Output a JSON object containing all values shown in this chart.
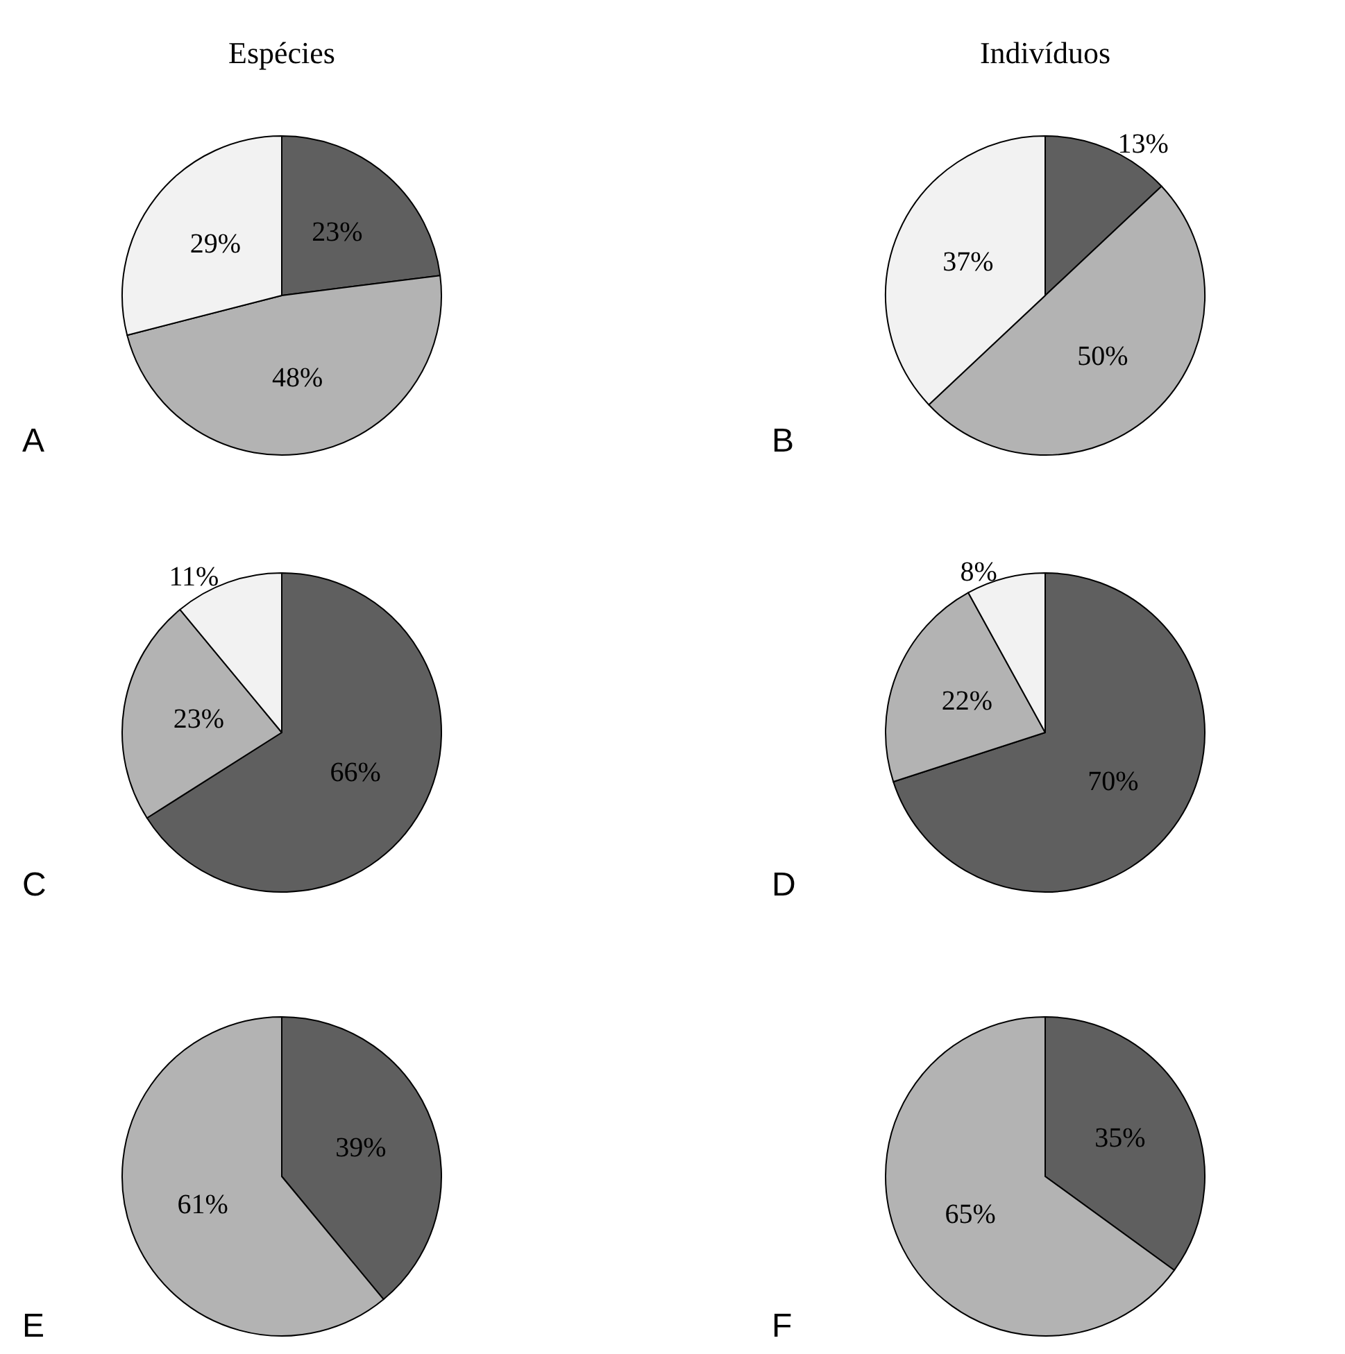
{
  "chart_data": [
    {
      "type": "pie",
      "title": "Espécies",
      "categories": [
        null,
        null,
        null
      ],
      "values": [
        23,
        48,
        29
      ],
      "colors": [
        "#5f5f5f",
        "#b3b3b3",
        "#f2f2f2"
      ],
      "value_labels": [
        "23%",
        "48%",
        "29%"
      ],
      "annotations": [
        "A"
      ]
    },
    {
      "type": "pie",
      "title": "Indivíduos",
      "categories": [
        null,
        null,
        null
      ],
      "values": [
        13,
        50,
        37
      ],
      "colors": [
        "#5f5f5f",
        "#b3b3b3",
        "#f2f2f2"
      ],
      "value_labels": [
        "13%",
        "50%",
        "37%"
      ],
      "annotations": [
        "B"
      ]
    },
    {
      "type": "pie",
      "categories": [
        null,
        null,
        null
      ],
      "values": [
        66,
        23,
        11
      ],
      "colors": [
        "#5f5f5f",
        "#b3b3b3",
        "#f2f2f2"
      ],
      "value_labels": [
        "66%",
        "23%",
        "11%"
      ],
      "annotations": [
        "C"
      ]
    },
    {
      "type": "pie",
      "categories": [
        null,
        null,
        null
      ],
      "values": [
        70,
        22,
        8
      ],
      "colors": [
        "#5f5f5f",
        "#b3b3b3",
        "#f2f2f2"
      ],
      "value_labels": [
        "70%",
        "22%",
        "8%"
      ],
      "annotations": [
        "D"
      ]
    },
    {
      "type": "pie",
      "categories": [
        null,
        null
      ],
      "values": [
        39,
        61
      ],
      "colors": [
        "#5f5f5f",
        "#b3b3b3"
      ],
      "value_labels": [
        "39%",
        "61%"
      ],
      "annotations": [
        "E"
      ]
    },
    {
      "type": "pie",
      "categories": [
        null,
        null
      ],
      "values": [
        35,
        65
      ],
      "colors": [
        "#5f5f5f",
        "#b3b3b3"
      ],
      "value_labels": [
        "35%",
        "65%"
      ],
      "annotations": [
        "F"
      ]
    }
  ]
}
